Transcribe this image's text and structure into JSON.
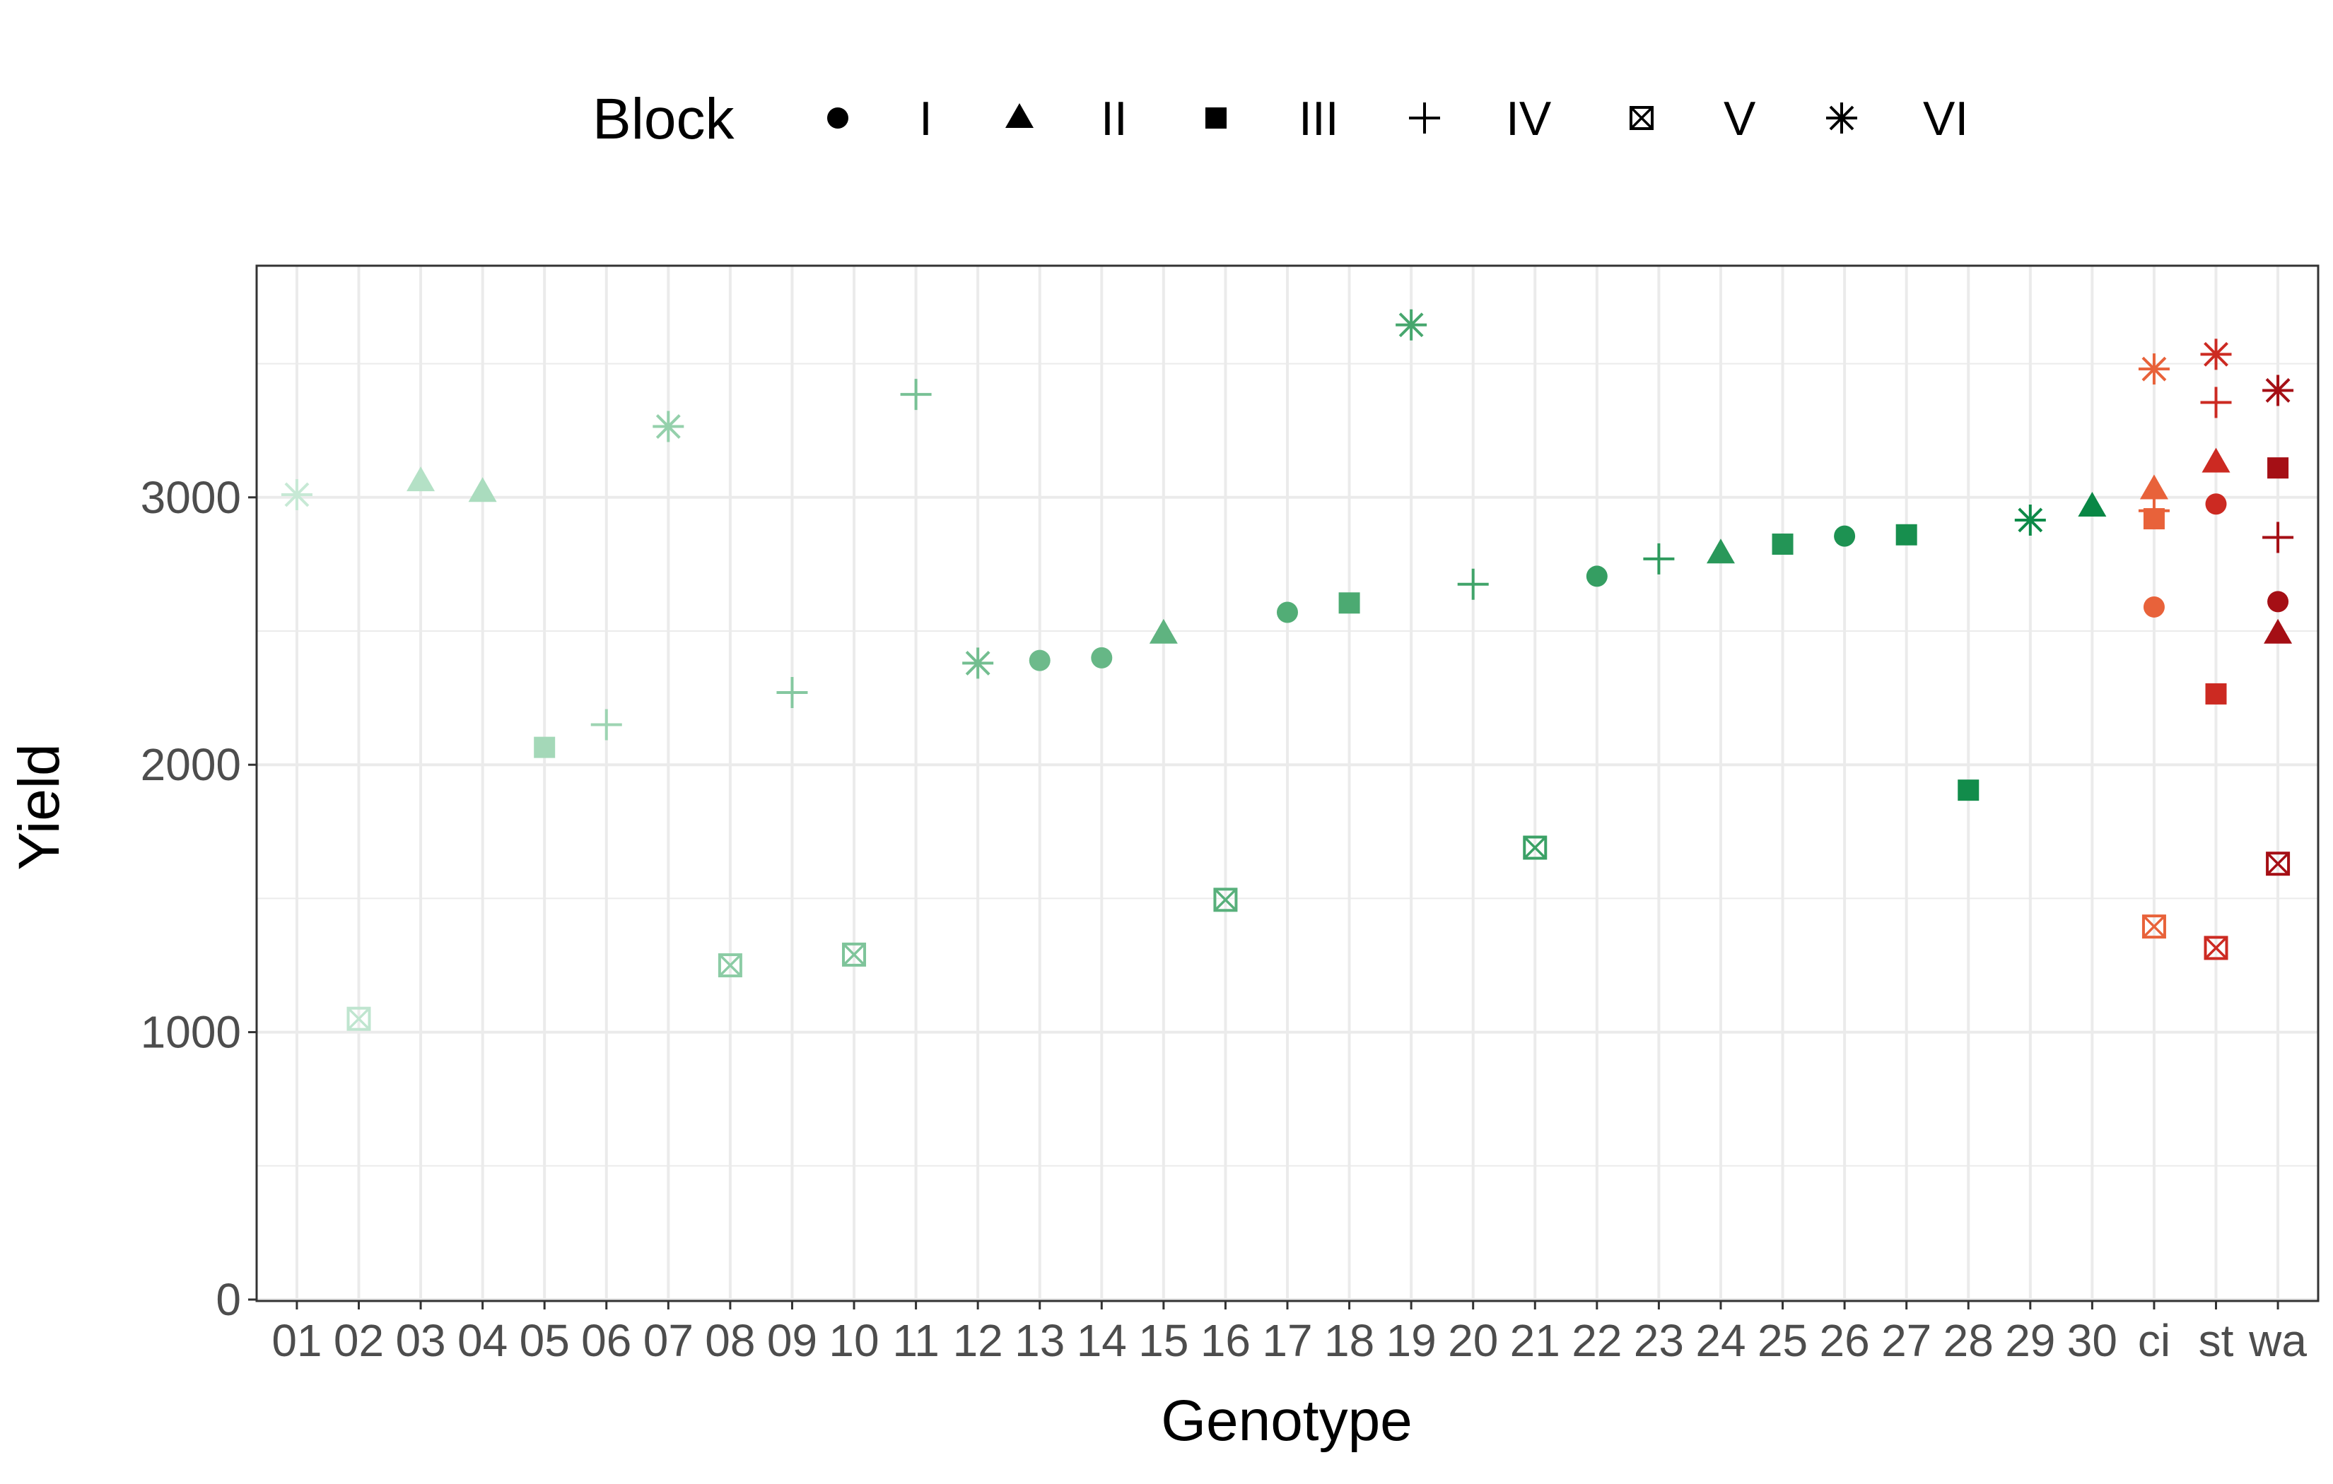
{
  "chart_data": {
    "type": "scatter",
    "xlabel": "Genotype",
    "ylabel": "Yield",
    "ylim": [
      0,
      3750
    ],
    "yticks": [
      0,
      1000,
      2000,
      3000
    ],
    "grid": true,
    "legend": {
      "title": "Block",
      "position": "top",
      "entries": [
        {
          "label": "I",
          "shape": "circle"
        },
        {
          "label": "II",
          "shape": "triangle"
        },
        {
          "label": "III",
          "shape": "square"
        },
        {
          "label": "IV",
          "shape": "plus"
        },
        {
          "label": "V",
          "shape": "square-cross"
        },
        {
          "label": "VI",
          "shape": "asterisk"
        }
      ]
    },
    "categories": [
      "01",
      "02",
      "03",
      "04",
      "05",
      "06",
      "07",
      "08",
      "09",
      "10",
      "11",
      "12",
      "13",
      "14",
      "15",
      "16",
      "17",
      "18",
      "19",
      "20",
      "21",
      "22",
      "23",
      "24",
      "25",
      "26",
      "27",
      "28",
      "29",
      "30",
      "ci",
      "st",
      "wa"
    ],
    "points": [
      {
        "x": "01",
        "block": "VI",
        "y": 3010,
        "color": "#c7e9d5"
      },
      {
        "x": "02",
        "block": "V",
        "y": 1050,
        "color": "#bfe5cf"
      },
      {
        "x": "03",
        "block": "II",
        "y": 3060,
        "color": "#b4e1c6"
      },
      {
        "x": "04",
        "block": "II",
        "y": 3020,
        "color": "#aadcbe"
      },
      {
        "x": "05",
        "block": "III",
        "y": 2065,
        "color": "#a4d8b8"
      },
      {
        "x": "06",
        "block": "IV",
        "y": 2150,
        "color": "#9dd4b2"
      },
      {
        "x": "07",
        "block": "VI",
        "y": 3265,
        "color": "#94d0ab"
      },
      {
        "x": "08",
        "block": "V",
        "y": 1250,
        "color": "#8ccca5"
      },
      {
        "x": "09",
        "block": "IV",
        "y": 2270,
        "color": "#85c8a0"
      },
      {
        "x": "10",
        "block": "V",
        "y": 1290,
        "color": "#7ec49a"
      },
      {
        "x": "11",
        "block": "IV",
        "y": 3385,
        "color": "#78c195"
      },
      {
        "x": "12",
        "block": "VI",
        "y": 2380,
        "color": "#73be90"
      },
      {
        "x": "13",
        "block": "I",
        "y": 2390,
        "color": "#6dba8b"
      },
      {
        "x": "14",
        "block": "I",
        "y": 2400,
        "color": "#66b786"
      },
      {
        "x": "15",
        "block": "II",
        "y": 2490,
        "color": "#5fb380"
      },
      {
        "x": "16",
        "block": "V",
        "y": 1495,
        "color": "#58b07b"
      },
      {
        "x": "17",
        "block": "I",
        "y": 2570,
        "color": "#52ad76"
      },
      {
        "x": "18",
        "block": "III",
        "y": 2605,
        "color": "#4caa72"
      },
      {
        "x": "19",
        "block": "VI",
        "y": 3645,
        "color": "#47a76e"
      },
      {
        "x": "20",
        "block": "IV",
        "y": 2675,
        "color": "#41a46a"
      },
      {
        "x": "21",
        "block": "V",
        "y": 1690,
        "color": "#3ba166"
      },
      {
        "x": "22",
        "block": "I",
        "y": 2705,
        "color": "#359e62"
      },
      {
        "x": "23",
        "block": "IV",
        "y": 2770,
        "color": "#2f9b5e"
      },
      {
        "x": "24",
        "block": "II",
        "y": 2790,
        "color": "#29985a"
      },
      {
        "x": "25",
        "block": "III",
        "y": 2825,
        "color": "#239556"
      },
      {
        "x": "26",
        "block": "I",
        "y": 2855,
        "color": "#1d9252"
      },
      {
        "x": "27",
        "block": "III",
        "y": 2860,
        "color": "#178f4e"
      },
      {
        "x": "28",
        "block": "III",
        "y": 1905,
        "color": "#128c4b"
      },
      {
        "x": "29",
        "block": "VI",
        "y": 2915,
        "color": "#0d8a48"
      },
      {
        "x": "30",
        "block": "II",
        "y": 2965,
        "color": "#098745"
      },
      {
        "x": "ci",
        "block": "I",
        "y": 2590,
        "color": "#e8623a"
      },
      {
        "x": "ci",
        "block": "II",
        "y": 3030,
        "color": "#e8623a"
      },
      {
        "x": "ci",
        "block": "III",
        "y": 2920,
        "color": "#e8623a"
      },
      {
        "x": "ci",
        "block": "IV",
        "y": 2950,
        "color": "#e8623a"
      },
      {
        "x": "ci",
        "block": "V",
        "y": 1395,
        "color": "#e8623a"
      },
      {
        "x": "ci",
        "block": "VI",
        "y": 3480,
        "color": "#e8623a"
      },
      {
        "x": "st",
        "block": "I",
        "y": 2975,
        "color": "#cc2a22"
      },
      {
        "x": "st",
        "block": "II",
        "y": 3130,
        "color": "#cc2a22"
      },
      {
        "x": "st",
        "block": "III",
        "y": 2265,
        "color": "#cc2a22"
      },
      {
        "x": "st",
        "block": "IV",
        "y": 3355,
        "color": "#cc2a22"
      },
      {
        "x": "st",
        "block": "V",
        "y": 1315,
        "color": "#cc2a22"
      },
      {
        "x": "st",
        "block": "VI",
        "y": 3535,
        "color": "#cc2a22"
      },
      {
        "x": "wa",
        "block": "I",
        "y": 2610,
        "color": "#a50f15"
      },
      {
        "x": "wa",
        "block": "II",
        "y": 2490,
        "color": "#a50f15"
      },
      {
        "x": "wa",
        "block": "III",
        "y": 3110,
        "color": "#a50f15"
      },
      {
        "x": "wa",
        "block": "IV",
        "y": 2850,
        "color": "#a50f15"
      },
      {
        "x": "wa",
        "block": "V",
        "y": 1630,
        "color": "#a50f15"
      },
      {
        "x": "wa",
        "block": "VI",
        "y": 3400,
        "color": "#a50f15"
      }
    ]
  }
}
